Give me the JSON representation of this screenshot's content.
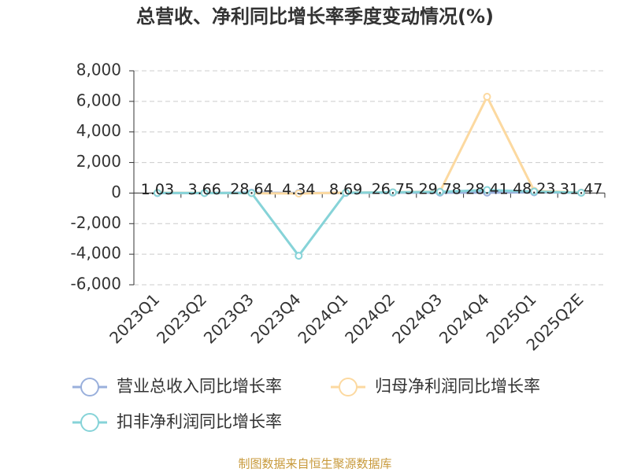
{
  "chart_data": {
    "type": "line",
    "title": "总营收、净利同比增长率季度变动情况(%)",
    "categories": [
      "2023Q1",
      "2023Q2",
      "2023Q3",
      "2023Q4",
      "2024Q1",
      "2024Q2",
      "2024Q3",
      "2024Q4",
      "2025Q1",
      "2025Q2E"
    ],
    "series": [
      {
        "name": "营业总收入同比增长率",
        "color": "#9ab0dc",
        "values": [
          1.03,
          3.66,
          28.64,
          4.34,
          8.69,
          26.75,
          29.78,
          28.41,
          48.23,
          31.47
        ]
      },
      {
        "name": "归母净利润同比增长率",
        "color": "#fcd9a0",
        "values": [
          20,
          10,
          -10,
          -30,
          30,
          50,
          100,
          6300,
          150,
          30
        ]
      },
      {
        "name": "扣非净利润同比增长率",
        "color": "#86d3d8",
        "values": [
          10,
          5,
          0,
          -4100,
          20,
          50,
          80,
          200,
          100,
          20
        ]
      }
    ],
    "ylim": [
      -6000,
      8000
    ],
    "yticks": [
      {
        "value": -6000,
        "label": "-6,000"
      },
      {
        "value": -4000,
        "label": "-4,000"
      },
      {
        "value": -2000,
        "label": "-2,000"
      },
      0,
      {
        "value": 2000,
        "label": "2,000"
      },
      {
        "value": 4000,
        "label": "4,000"
      },
      {
        "value": 6000,
        "label": "6,000"
      },
      {
        "value": 8000,
        "label": "8,000"
      }
    ],
    "grid": true,
    "source": "制图数据来自恒生聚源数据库"
  }
}
